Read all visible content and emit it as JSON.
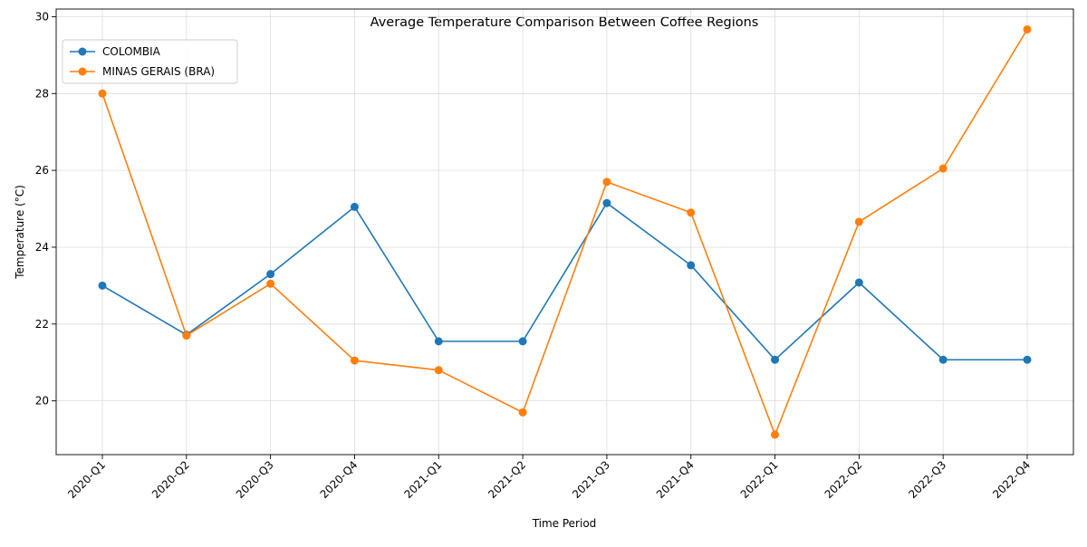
{
  "chart_data": {
    "type": "line",
    "title": "Average Temperature Comparison Between Coffee Regions",
    "xlabel": "Time Period",
    "ylabel": "Temperature (°C)",
    "categories": [
      "2020-Q1",
      "2020-Q2",
      "2020-Q3",
      "2020-Q4",
      "2021-Q1",
      "2021-Q2",
      "2021-Q3",
      "2021-Q4",
      "2022-Q1",
      "2022-Q2",
      "2022-Q3",
      "2022-Q4"
    ],
    "ylim": [
      18.6,
      30.2
    ],
    "yticks": [
      20,
      22,
      24,
      26,
      28,
      30
    ],
    "grid": true,
    "legend_position": "top-left",
    "series": [
      {
        "name": "COLOMBIA",
        "color": "#1f77b4",
        "values": [
          23.0,
          21.72,
          23.3,
          25.05,
          21.55,
          21.55,
          25.15,
          23.53,
          21.07,
          23.08,
          21.07,
          21.07
        ]
      },
      {
        "name": "MINAS GERAIS (BRA)",
        "color": "#ff7f0e",
        "values": [
          28.0,
          21.7,
          23.05,
          21.05,
          20.8,
          19.7,
          25.7,
          24.9,
          19.12,
          24.66,
          26.05,
          29.67
        ]
      }
    ]
  }
}
